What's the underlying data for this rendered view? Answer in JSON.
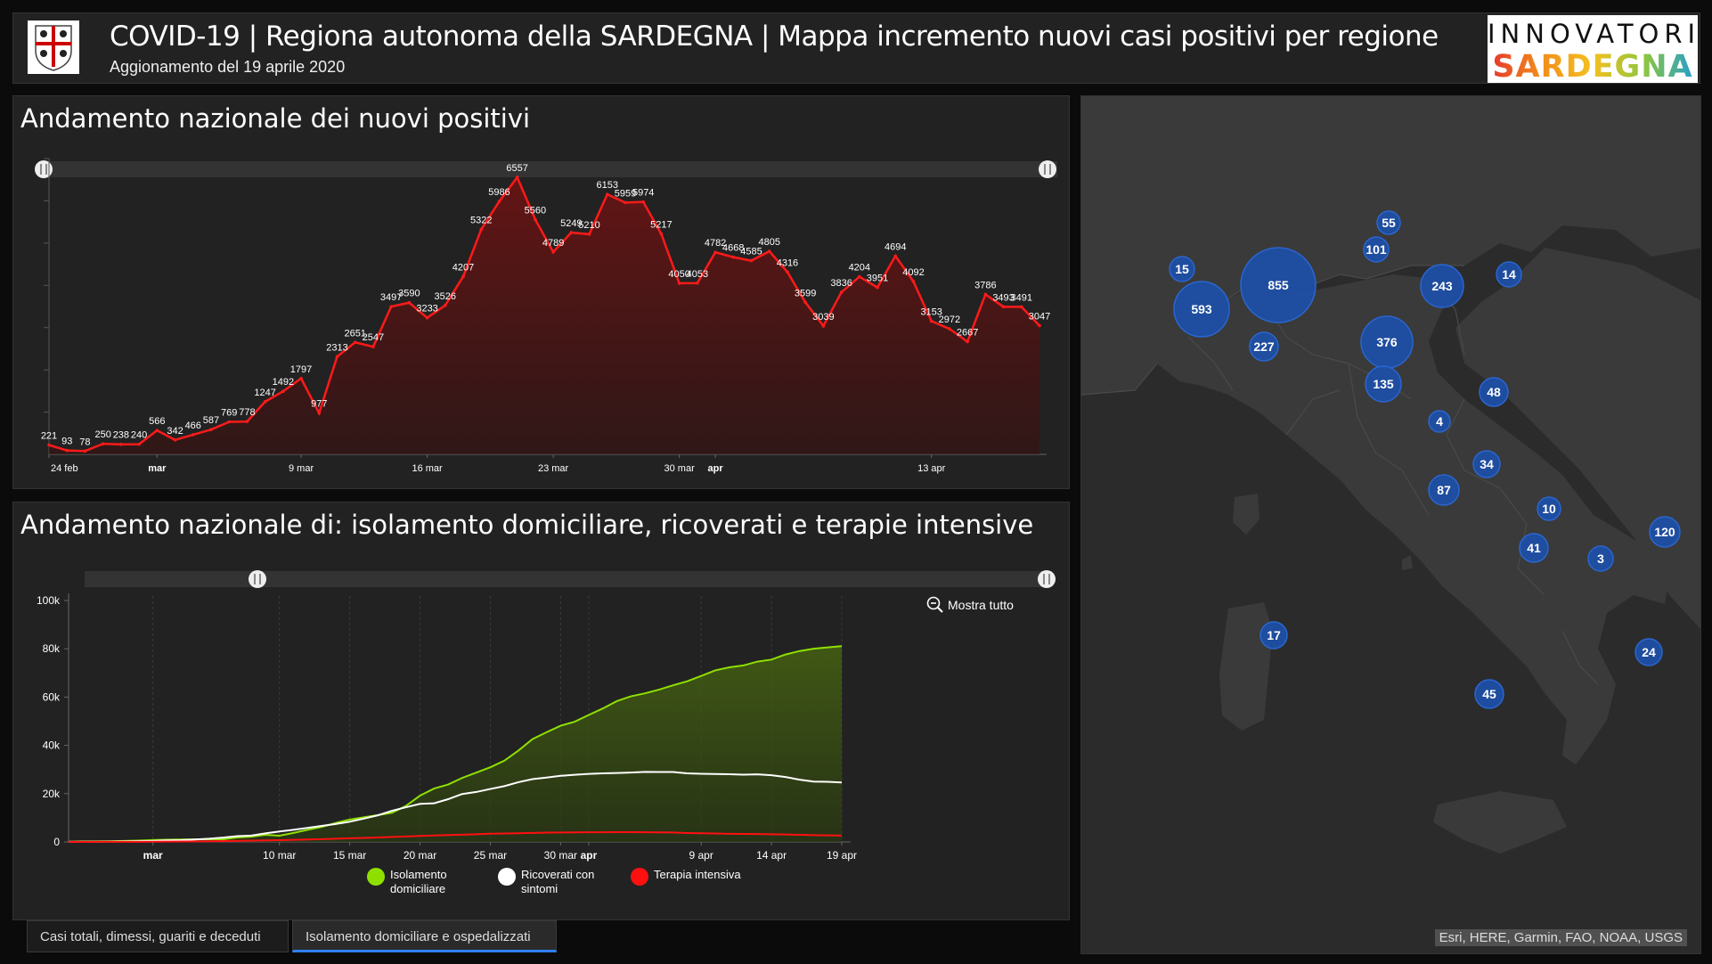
{
  "header": {
    "title": "COVID-19 | Regiona autonoma della SARDEGNA | Mappa incremento nuovi casi positivi per regione",
    "subtitle": "Aggionamento del 19 aprile 2020",
    "brand_line1": "INNOVATORI",
    "brand_line2": "SARDEGNA"
  },
  "panel1": {
    "title": "Andamento nazionale dei nuovi positivi",
    "x_ticks": [
      "24 feb",
      "mar",
      "9 mar",
      "16 mar",
      "23 mar",
      "30 mar",
      "apr",
      "13 apr"
    ]
  },
  "panel2": {
    "title": "Andamento nazionale di: isolamento domiciliare, ricoverati e terapie intensive",
    "zoom_label": "Mostra tutto",
    "y_ticks": [
      "0",
      "20k",
      "40k",
      "60k",
      "80k",
      "100k"
    ],
    "x_ticks": [
      "mar",
      "10 mar",
      "15 mar",
      "20 mar",
      "25 mar",
      "30 mar",
      "apr",
      "9 apr",
      "14 apr",
      "19 apr"
    ],
    "legend": [
      {
        "label": "Isolamento domiciliare",
        "color": "#8fe000"
      },
      {
        "label": "Ricoverati con sintomi",
        "color": "#ffffff"
      },
      {
        "label": "Terapia intensiva",
        "color": "#ff1010"
      }
    ]
  },
  "tabs": [
    "Casi totali, dimessi, guariti e deceduti",
    "Isolamento domiciliare e ospedalizzati"
  ],
  "map": {
    "attribution": "Esri, HERE, Garmin, FAO, NOAA, USGS",
    "markers": [
      "55",
      "101",
      "15",
      "855",
      "243",
      "14",
      "593",
      "227",
      "376",
      "135",
      "48",
      "4",
      "34",
      "87",
      "10",
      "120",
      "41",
      "3",
      "17",
      "24",
      "45"
    ]
  },
  "chart_data": [
    {
      "type": "area",
      "title": "Andamento nazionale dei nuovi positivi",
      "color": "#ff1a1a",
      "x": [
        "24 feb",
        "25 feb",
        "26 feb",
        "27 feb",
        "28 feb",
        "29 feb",
        "1 mar",
        "2 mar",
        "3 mar",
        "4 mar",
        "5 mar",
        "6 mar",
        "7 mar",
        "8 mar",
        "9 mar",
        "10 mar",
        "11 mar",
        "12 mar",
        "13 mar",
        "14 mar",
        "15 mar",
        "16 mar",
        "17 mar",
        "18 mar",
        "19 mar",
        "20 mar",
        "21 mar",
        "22 mar",
        "23 mar",
        "24 mar",
        "25 mar",
        "26 mar",
        "27 mar",
        "28 mar",
        "29 mar",
        "30 mar",
        "31 mar",
        "1 apr",
        "2 apr",
        "3 apr",
        "4 apr",
        "5 apr",
        "6 apr",
        "7 apr",
        "8 apr",
        "9 apr",
        "10 apr",
        "11 apr",
        "12 apr",
        "13 apr",
        "14 apr",
        "15 apr",
        "16 apr",
        "17 apr",
        "18 apr",
        "19 apr"
      ],
      "values": [
        221,
        93,
        78,
        250,
        238,
        240,
        566,
        342,
        466,
        587,
        769,
        778,
        1247,
        1492,
        1797,
        977,
        2313,
        2651,
        2547,
        3497,
        3590,
        3233,
        3526,
        4207,
        5322,
        5986,
        6557,
        5560,
        4789,
        5249,
        5210,
        6153,
        5959,
        5974,
        5217,
        4050,
        4053,
        4782,
        4668,
        4585,
        4805,
        4316,
        3599,
        3039,
        3836,
        4204,
        3951,
        4694,
        4092,
        3153,
        2972,
        2667,
        3786,
        3493,
        3491,
        3047
      ],
      "ylim": [
        0,
        7000
      ]
    },
    {
      "type": "line",
      "title": "Andamento nazionale di: isolamento domiciliare, ricoverati e terapie intensive",
      "x_range": [
        "24 feb",
        "19 apr"
      ],
      "ylim": [
        0,
        100000
      ],
      "series": [
        {
          "name": "Isolamento domiciliare",
          "color": "#8fe000",
          "values": [
            94,
            162,
            221,
            284,
            412,
            543,
            798,
            927,
            1000,
            1065,
            1155,
            1060,
            1843,
            2180,
            2936,
            2599,
            3724,
            5036,
            6201,
            7860,
            9268,
            10197,
            11108,
            12090,
            14935,
            19185,
            22116,
            23783,
            26522,
            28697,
            30920,
            33648,
            37859,
            42588,
            45420,
            48134,
            49795,
            52579,
            55270,
            58320,
            60313,
            61557,
            63084,
            64873,
            66534,
            68744,
            71063,
            72333,
            73094,
            74696,
            75528,
            77635,
            79072,
            80031,
            80589,
            81104
          ]
        },
        {
          "name": "Ricoverati con sintomi",
          "color": "#ffffff",
          "values": [
            54,
            99,
            114,
            128,
            248,
            345,
            401,
            639,
            742,
            1034,
            1346,
            1790,
            2394,
            2651,
            3557,
            4316,
            5038,
            5838,
            6650,
            7426,
            8372,
            9663,
            11025,
            12894,
            14363,
            15757,
            16020,
            17708,
            19846,
            20692,
            21937,
            23112,
            24753,
            26029,
            26676,
            27386,
            27795,
            28192,
            28403,
            28540,
            28741,
            29010,
            28949,
            28976,
            28399,
            28242,
            28144,
            28023,
            27847,
            28011,
            27643,
            26893,
            25786,
            25007,
            24906,
            24648
          ]
        },
        {
          "name": "Terapia intensiva",
          "color": "#ff1010",
          "values": [
            26,
            23,
            35,
            36,
            56,
            64,
            105,
            140,
            166,
            229,
            295,
            351,
            462,
            567,
            650,
            733,
            877,
            1028,
            1153,
            1328,
            1518,
            1672,
            1851,
            2060,
            2257,
            2498,
            2655,
            2857,
            3009,
            3204,
            3396,
            3489,
            3612,
            3732,
            3856,
            3906,
            3981,
            4023,
            4035,
            4053,
            4068,
            3994,
            3977,
            3898,
            3693,
            3605,
            3497,
            3381,
            3343,
            3260,
            3186,
            3079,
            2936,
            2812,
            2733,
            2635
          ]
        }
      ]
    }
  ]
}
